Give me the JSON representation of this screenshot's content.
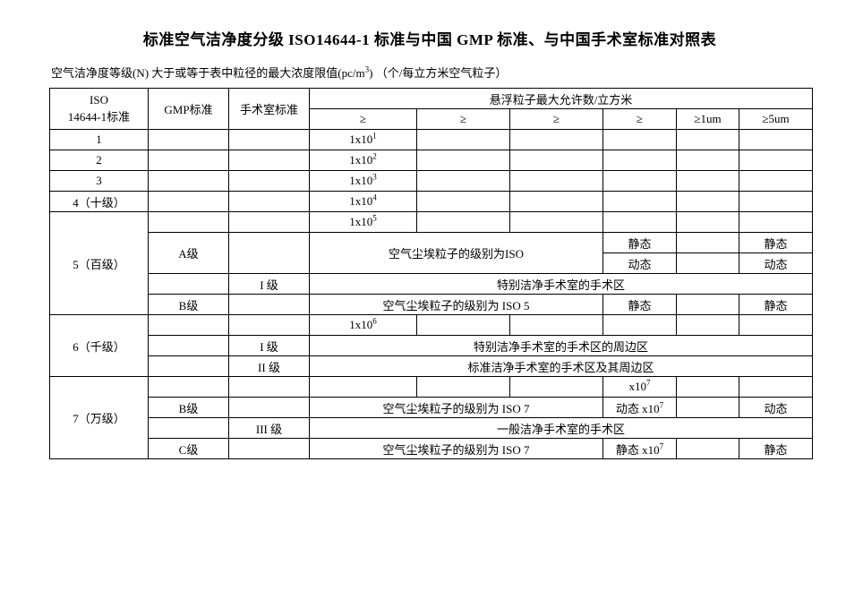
{
  "title": "标准空气洁净度分级 ISO14644-1 标准与中国 GMP 标准、与中国手术室标准对照表",
  "subtitle_prefix": "空气洁净度等级(N) 大于或等于表中粒径的最大浓度限值(pc/m",
  "subtitle_sup": "3",
  "subtitle_suffix": ") （个/每立方米空气粒子）",
  "colors": {
    "border": "#000000",
    "bg": "#ffffff",
    "text": "#000000"
  },
  "header": {
    "iso_line1": "ISO",
    "iso_line2": "14644-1标准",
    "gmp": "GMP标准",
    "or": "手术室标准",
    "particle_title": "悬浮粒子最大允许数/立方米",
    "ge": "≥",
    "ge_1um": "≥1um",
    "ge_5um": "≥5um"
  },
  "rows": {
    "r1": {
      "iso": "1",
      "p1": "1x10",
      "p1_sup": "1"
    },
    "r2": {
      "iso": "2",
      "p1": "1x10",
      "p1_sup": "2"
    },
    "r3": {
      "iso": "3",
      "p1": "1x10",
      "p1_sup": "3"
    },
    "r4": {
      "iso": "4（十级）",
      "p1": "1x10",
      "p1_sup": "4"
    },
    "r5": {
      "iso": "5（百级）",
      "p1": "1x10",
      "p1_sup": "5",
      "gmpA": "A级",
      "iso_text": "空气尘埃粒子的级别为ISO",
      "static": "静态",
      "dynamic": "动态",
      "orI": "I 级",
      "orI_text": "特别洁净手术室的手术区",
      "gmpB": "B级",
      "iso5_text": "空气尘埃粒子的级别为 ISO 5"
    },
    "r6": {
      "iso": "6（千级）",
      "p1": "1x10",
      "p1_sup": "6",
      "orI": "I 级",
      "orI_text": "特别洁净手术室的手术区的周边区",
      "orII": "II 级",
      "orII_text": "标准洁净手术室的手术区及其周边区"
    },
    "r7": {
      "iso": "7（万级）",
      "x10_7": "x10",
      "x10_7_sup": "7",
      "gmpB": "B级",
      "iso7_text": "空气尘埃粒子的级别为 ISO 7",
      "dyn_x10_7": "动态 x10",
      "dyn_x10_7_sup": "7",
      "dynamic": "动态",
      "orIII": "III 级",
      "orIII_text": "一般洁净手术室的手术区",
      "gmpC": "C级",
      "stat_x10_7": "静态 x10",
      "stat_x10_7_sup": "7",
      "static": "静态"
    }
  }
}
